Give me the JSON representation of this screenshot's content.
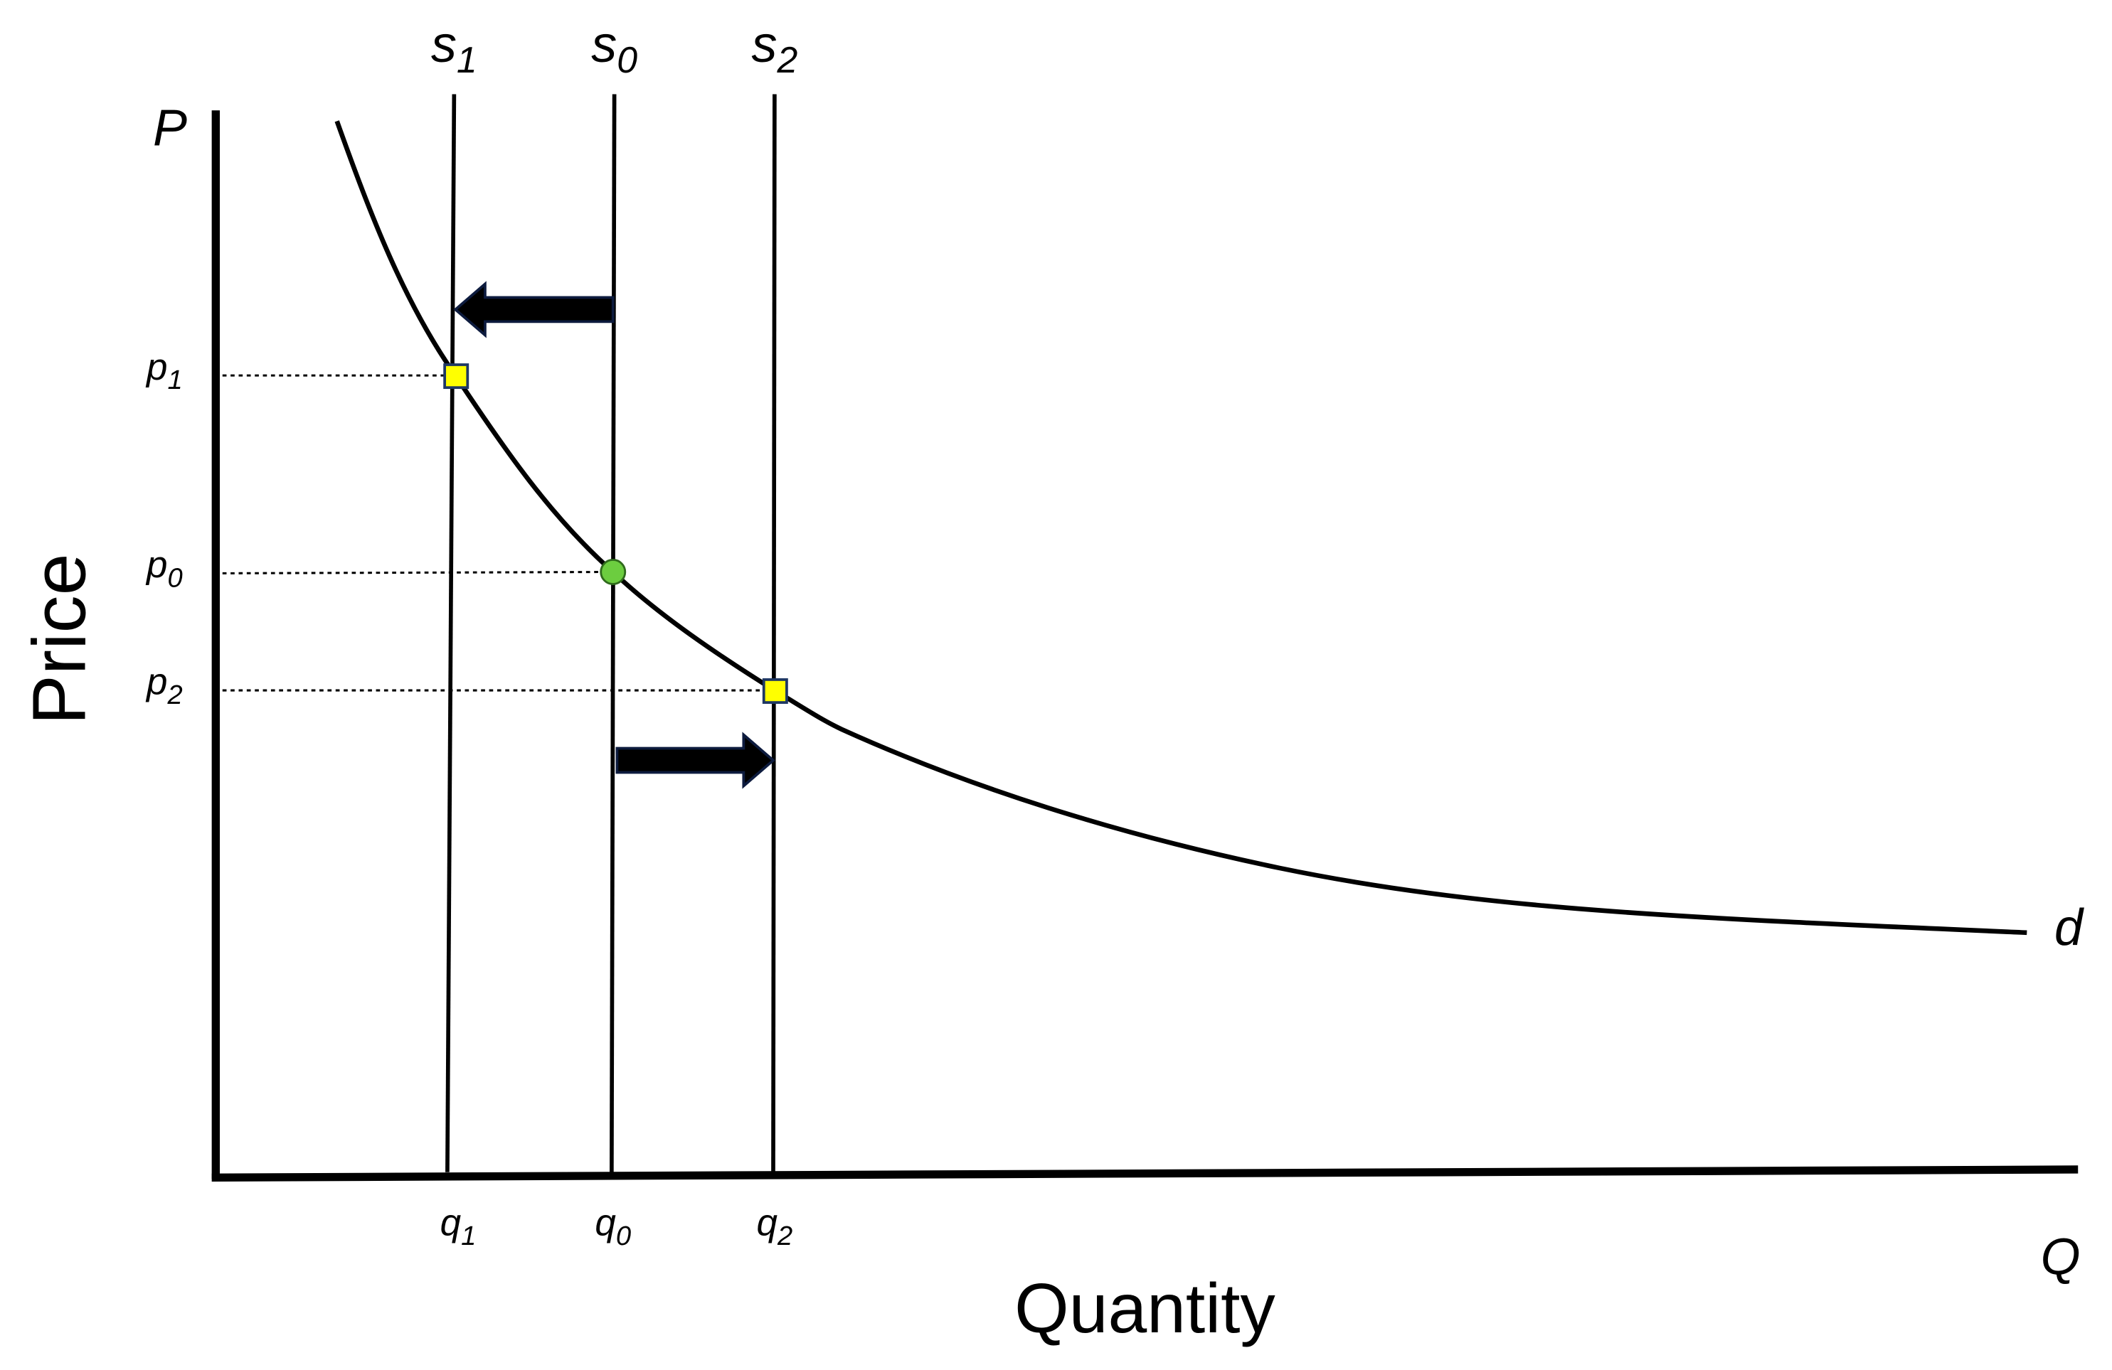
{
  "axes": {
    "y_title": "Price",
    "x_title": "Quantity",
    "y_end": "P",
    "x_end": "Q"
  },
  "supply": [
    {
      "base": "s",
      "sub": "1"
    },
    {
      "base": "s",
      "sub": "0"
    },
    {
      "base": "s",
      "sub": "2"
    }
  ],
  "demand": "d",
  "prices": [
    {
      "base": "p",
      "sub": "1"
    },
    {
      "base": "p",
      "sub": "0"
    },
    {
      "base": "p",
      "sub": "2"
    }
  ],
  "quantities": [
    {
      "base": "q",
      "sub": "1"
    },
    {
      "base": "q",
      "sub": "0"
    },
    {
      "base": "q",
      "sub": "2"
    }
  ]
}
